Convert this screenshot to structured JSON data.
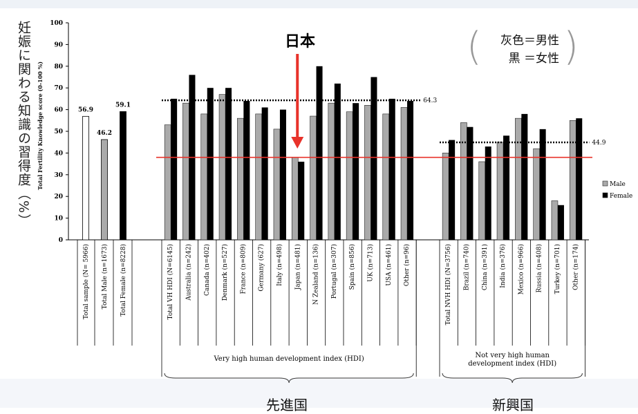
{
  "annotations": {
    "japanese_ylabel": "妊娠に関わる知識の習得度（%）",
    "japan_label": "日本",
    "legend_gray": "灰色＝男性",
    "legend_black": "黒 ＝女性",
    "developed_label": "先進国",
    "emerging_label": "新興国"
  },
  "chart_data": {
    "type": "bar",
    "ylabel": "Total Fertility Knowledge score (0-100 %)",
    "ylim": [
      0,
      100
    ],
    "yticks": [
      0,
      10,
      20,
      30,
      40,
      50,
      60,
      70,
      80,
      90,
      100
    ],
    "legend": [
      {
        "name": "Male",
        "color": "#aaaaaa"
      },
      {
        "name": "Female",
        "color": "#000000"
      }
    ],
    "totals": [
      {
        "label": "Total sample (N= 5966)",
        "value": 56.9,
        "value_label": "56.9",
        "fill": "#ffffff"
      },
      {
        "label": "Total Male (n=1673)",
        "value": 46.2,
        "value_label": "46.2",
        "fill": "#aaaaaa"
      },
      {
        "label": "Total Female (n=8228)",
        "value": 59.1,
        "value_label": "59.1",
        "fill": "#000000"
      }
    ],
    "groups": [
      {
        "name": "Very high human development index (HDI)",
        "mean": 64.3,
        "mean_label": "64.3",
        "categories": [
          "Total VH HDI (N=6145)",
          "Australia (n=242)",
          "Canada (n=402)",
          "Denmark (n=527)",
          "France (n=809)",
          "Germany (627)",
          "Italy (n=498)",
          "Japan (n=481)",
          "N Zealand (n=136)",
          "Portugal (n=307)",
          "Spain (n=856)",
          "UK (n=713)",
          "USA (n=461)",
          "Other (n=96)"
        ],
        "male": [
          53,
          63,
          58,
          67,
          56,
          58,
          51,
          38,
          57,
          63,
          59,
          62,
          58,
          61
        ],
        "female": [
          65,
          76,
          70,
          70,
          64,
          61,
          60,
          36,
          80,
          72,
          63,
          75,
          65,
          64
        ]
      },
      {
        "name": "Not very high human development index (HDI)",
        "mean": 44.9,
        "mean_label": "44.9",
        "categories": [
          "Total NVH HDI (N=3756)",
          "Brazil (n=740)",
          "China (n=391)",
          "India (n=376)",
          "Mexico (n=966)",
          "Russia (n=408)",
          "Turkey (n=701)",
          "Other (n=174)"
        ],
        "male": [
          40,
          54,
          36,
          45,
          56,
          42,
          18,
          55
        ],
        "female": [
          46,
          52,
          43,
          48,
          58,
          51,
          16,
          56
        ]
      }
    ],
    "reference_line": 38
  }
}
